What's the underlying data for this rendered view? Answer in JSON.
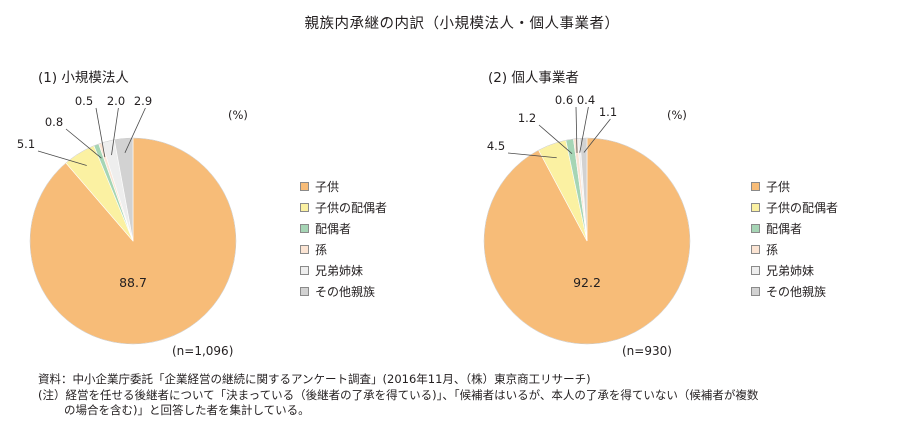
{
  "title": "親族内承継の内訳（小規模法人・個人事業者）",
  "notes": {
    "source": "資料：中小企業庁委託「企業経営の継続に関するアンケート調査」(2016年11月、（株）東京商工リサーチ)",
    "note1": "(注）経営を任せる後継者について「決まっている（後継者の了承を得ている)」、「候補者はいるが、本人の了承を得ていない（候補者が複数",
    "note2": "の場合を含む)」と回答した者を集計している。"
  },
  "colors": {
    "子供": "#f7bc78",
    "子供の配偶者": "#fbf1a2",
    "配偶者": "#a6d5b5",
    "孫": "#fbe4d3",
    "兄弟姉妹": "#eeeeee",
    "その他親族": "#d2d2d2"
  },
  "chart_data": [
    {
      "type": "pie",
      "subtitle": "(1) 小規模法人",
      "unit": "(%)",
      "n_label": "(n=1,096)",
      "categories": [
        "子供",
        "子供の配偶者",
        "配偶者",
        "孫",
        "兄弟姉妹",
        "その他親族"
      ],
      "values": [
        88.7,
        5.1,
        0.8,
        0.5,
        2.0,
        2.9
      ],
      "labels": [
        "88.7",
        "5.1",
        "0.8",
        "0.5",
        "2.0",
        "2.9"
      ],
      "legend": [
        "子供",
        "子供の配偶者",
        "配偶者",
        "孫",
        "兄弟姉妹",
        "その他親族"
      ]
    },
    {
      "type": "pie",
      "subtitle": "(2) 個人事業者",
      "unit": "(%)",
      "n_label": "(n=930)",
      "categories": [
        "子供",
        "子供の配偶者",
        "配偶者",
        "孫",
        "兄弟姉妹",
        "その他親族"
      ],
      "values": [
        92.2,
        4.5,
        1.2,
        0.6,
        0.4,
        1.1
      ],
      "labels": [
        "92.2",
        "4.5",
        "1.2",
        "0.6",
        "0.4",
        "1.1"
      ],
      "legend": [
        "子供",
        "子供の配偶者",
        "配偶者",
        "孫",
        "兄弟姉妹",
        "その他親族"
      ]
    }
  ]
}
